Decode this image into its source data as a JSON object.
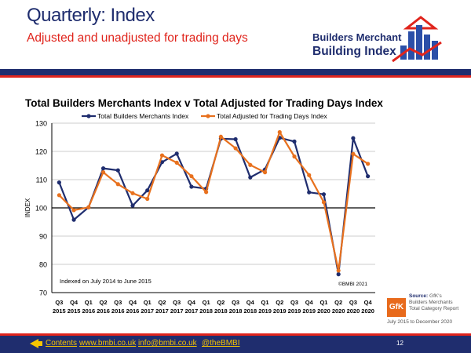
{
  "header": {
    "title_bold": "Quarterly",
    "title_rest": ": Index",
    "subtitle": "Adjusted and unadjusted for trading days"
  },
  "logo": {
    "line1": "Builders Merchant",
    "line2": "Building Index"
  },
  "chart_data": {
    "type": "line",
    "title": "Total Builders Merchants Index v Total Adjusted for Trading Days Index",
    "ylabel": "INDEX",
    "xlabel": "",
    "ylim": [
      70,
      130
    ],
    "yticks": [
      70,
      80,
      90,
      100,
      110,
      120,
      130
    ],
    "grid": true,
    "legend_position": "top",
    "reference_line": 100,
    "categories": [
      [
        "Q3",
        "2015"
      ],
      [
        "Q4",
        "2015"
      ],
      [
        "Q1",
        "2016"
      ],
      [
        "Q2",
        "2016"
      ],
      [
        "Q3",
        "2016"
      ],
      [
        "Q4",
        "2016"
      ],
      [
        "Q1",
        "2017"
      ],
      [
        "Q2",
        "2017"
      ],
      [
        "Q3",
        "2017"
      ],
      [
        "Q4",
        "2017"
      ],
      [
        "Q1",
        "2018"
      ],
      [
        "Q2",
        "2018"
      ],
      [
        "Q3",
        "2018"
      ],
      [
        "Q4",
        "2018"
      ],
      [
        "Q1",
        "2019"
      ],
      [
        "Q2",
        "2019"
      ],
      [
        "Q3",
        "2019"
      ],
      [
        "Q4",
        "2019"
      ],
      [
        "Q1",
        "2020"
      ],
      [
        "Q2",
        "2020"
      ],
      [
        "Q3",
        "2020"
      ],
      [
        "Q4",
        "2020"
      ]
    ],
    "series": [
      {
        "name": "Total Builders Merchants Index",
        "color": "#1f2d6e",
        "values": [
          109,
          95.8,
          100.2,
          114,
          113.3,
          100.8,
          106.2,
          116.2,
          119.2,
          107.5,
          106.8,
          124.5,
          124.3,
          110.8,
          113.6,
          124.8,
          123.5,
          105.5,
          104.8,
          76.5,
          124.7,
          111.2
        ]
      },
      {
        "name": "Total Adjusted for Trading Days Index",
        "color": "#e8711e",
        "values": [
          104.5,
          99.2,
          100.2,
          112.6,
          108.4,
          105.2,
          103.2,
          118.6,
          116.0,
          111.2,
          105.6,
          125.2,
          121.1,
          115.2,
          112.6,
          126.8,
          118.2,
          111.6,
          102.0,
          77.8,
          119.1,
          115.6
        ]
      }
    ],
    "annotations": {
      "left": "Indexed on July 2014 to June 2015",
      "right": "©BMBI 2021"
    }
  },
  "source": {
    "label": "Source:",
    "lines": "GfK's Builders Merchants Total Category Report",
    "period": "July 2015 to December 2020",
    "logo_text": "GfK"
  },
  "footer": {
    "contents": "Contents",
    "website": "www.bmbi.co.uk",
    "email": "info@bmbi.co.uk",
    "twitter": "@theBMBI",
    "page": "12"
  },
  "colors": {
    "brand_navy": "#1f2d6e",
    "brand_red": "#e0241c",
    "accent_yellow": "#f5c400"
  }
}
